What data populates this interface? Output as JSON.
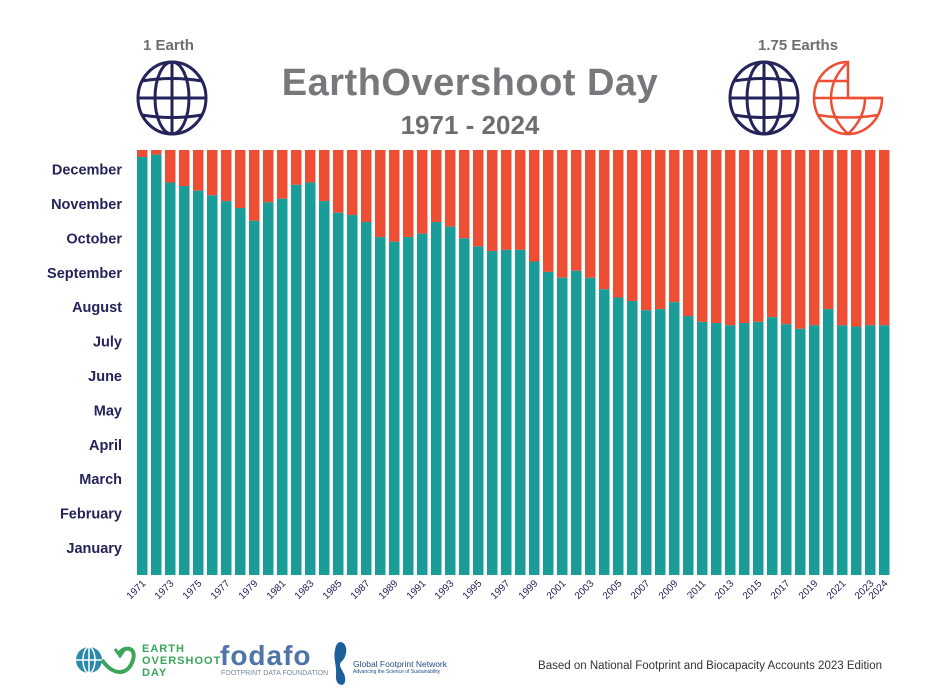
{
  "header": {
    "title": "EarthOvershoot Day",
    "subtitle": "1971 - 2024",
    "left_label": "1 Earth",
    "right_label": "1.75 Earths",
    "left_icon": "globe-icon",
    "right_icons": [
      "globe-icon",
      "partial-globe-icon"
    ]
  },
  "chart_data": {
    "type": "bar",
    "stacked": true,
    "title": "EarthOvershoot Day",
    "subtitle": "1971 - 2024",
    "x": [
      1971,
      1972,
      1973,
      1974,
      1975,
      1976,
      1977,
      1978,
      1979,
      1980,
      1981,
      1982,
      1983,
      1984,
      1985,
      1986,
      1987,
      1988,
      1989,
      1990,
      1991,
      1992,
      1993,
      1994,
      1995,
      1996,
      1997,
      1998,
      1999,
      2000,
      2001,
      2002,
      2003,
      2004,
      2005,
      2006,
      2007,
      2008,
      2009,
      2010,
      2011,
      2012,
      2013,
      2014,
      2015,
      2016,
      2017,
      2018,
      2019,
      2020,
      2021,
      2022,
      2023,
      2024
    ],
    "x_tick_labels": [
      "1971",
      "1973",
      "1975",
      "1977",
      "1979",
      "1981",
      "1983",
      "1985",
      "1987",
      "1989",
      "1991",
      "1993",
      "1995",
      "1997",
      "1999",
      "2001",
      "2003",
      "2005",
      "2007",
      "2009",
      "2011",
      "2013",
      "2015",
      "2017",
      "2019",
      "2021",
      "2023",
      "2024"
    ],
    "overshoot_day_of_year": [
      360,
      362,
      338,
      335,
      331,
      327,
      322,
      316,
      305,
      321,
      324,
      336,
      338,
      322,
      312,
      310,
      304,
      291,
      287,
      291,
      294,
      304,
      300,
      290,
      283,
      279,
      280,
      280,
      270,
      261,
      256,
      262,
      256,
      246,
      239,
      236,
      228,
      229,
      235,
      223,
      218,
      217,
      215,
      217,
      218,
      222,
      216,
      212,
      215,
      229,
      215,
      214,
      215,
      215
    ],
    "ylim": [
      0,
      366
    ],
    "y_tick_labels": [
      "January",
      "February",
      "March",
      "April",
      "May",
      "June",
      "July",
      "August",
      "September",
      "October",
      "November",
      "December"
    ],
    "colors": {
      "within_budget": "#1a9c98",
      "overshoot": "#ee4e34"
    },
    "grid": false
  },
  "footer": {
    "logos": {
      "eod_line1": "EARTH",
      "eod_line2": "OVERSHOOT",
      "eod_line3": "DAY",
      "fodafo": "fodafo",
      "fodafo_sub": "FOOTPRINT DATA FOUNDATION",
      "gfn": "Global Footprint Network",
      "gfn_sub": "Advancing the Science of Sustainability"
    },
    "source": "Based on National Footprint and Biocapacity Accounts 2023 Edition"
  }
}
